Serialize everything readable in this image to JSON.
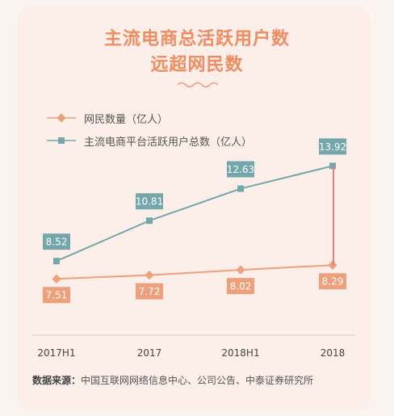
{
  "title_line1": "主流电商总活跃用户数",
  "title_line2": "远超网民数",
  "source_label": "数据来源：",
  "source_text": "中国互联网网络信息中心、公司公告、中泰证券研究所",
  "colors": {
    "netizen": "#ee9f7b",
    "ecommerce": "#73a7ab",
    "title": "#ee8c62",
    "connector": "#ea7e7e"
  },
  "chart_data": {
    "type": "line",
    "categories": [
      "2017H1",
      "2017",
      "2018H1",
      "2018"
    ],
    "series": [
      {
        "name": "网民数量（亿人）",
        "values": [
          7.51,
          7.72,
          8.02,
          8.29
        ]
      },
      {
        "name": "主流电商平台活跃用户总数（亿人）",
        "values": [
          8.52,
          10.81,
          12.63,
          13.92
        ]
      }
    ],
    "ylim": [
      5,
      16
    ],
    "grid": false,
    "legend_position": "top-left"
  }
}
